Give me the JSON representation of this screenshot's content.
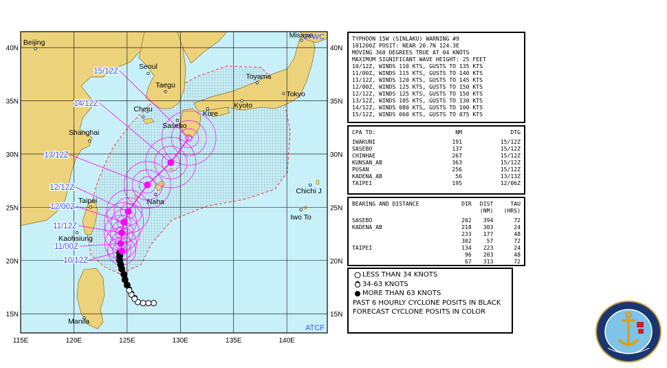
{
  "map": {
    "lon_labels": [
      "115E",
      "120E",
      "125E",
      "130E",
      "135E",
      "140E"
    ],
    "lat_labels": [
      "40N",
      "35N",
      "30N",
      "25N",
      "20N",
      "15N"
    ],
    "corner_labels": {
      "top_right": "JTWC",
      "bottom_right": "ATCF"
    },
    "colors": {
      "water": "#c8f0f8",
      "land": "#ecd27a",
      "grid": "#000000",
      "track_past": "#000000",
      "track_forecast": "#ff00ff",
      "label_blue": "#3355ff",
      "danger_area": "#ff3333",
      "hatch": "#7fa0a8"
    },
    "places": [
      {
        "name": "Beijing",
        "lon": 116.4,
        "lat": 39.9
      },
      {
        "name": "Seoul",
        "lon": 126.98,
        "lat": 37.57
      },
      {
        "name": "Taegu",
        "lon": 128.6,
        "lat": 35.87
      },
      {
        "name": "Cheju",
        "lon": 126.5,
        "lat": 33.5
      },
      {
        "name": "Sasebo",
        "lon": 129.72,
        "lat": 33.16
      },
      {
        "name": "Kure",
        "lon": 132.56,
        "lat": 34.24
      },
      {
        "name": "Kyoto",
        "lon": 135.77,
        "lat": 35.01
      },
      {
        "name": "Toyama",
        "lon": 137.21,
        "lat": 36.7
      },
      {
        "name": "Tokyo",
        "lon": 139.69,
        "lat": 35.69
      },
      {
        "name": "Misawa",
        "lon": 141.37,
        "lat": 40.68
      },
      {
        "name": "Shanghai",
        "lon": 121.47,
        "lat": 31.23
      },
      {
        "name": "Taipei",
        "lon": 121.56,
        "lat": 25.03
      },
      {
        "name": "Kaohsiung",
        "lon": 120.3,
        "lat": 22.62
      },
      {
        "name": "Naha",
        "lon": 127.68,
        "lat": 26.21
      },
      {
        "name": "Chichi J",
        "lon": 142.19,
        "lat": 27.09
      },
      {
        "name": "Iwo To",
        "lon": 141.32,
        "lat": 24.78
      },
      {
        "name": "Manila",
        "lon": 120.98,
        "lat": 14.6
      }
    ],
    "forecast_positions": [
      {
        "label": "10/12Z",
        "lon": 124.5,
        "lat": 20.9,
        "wind_kt": 110
      },
      {
        "label": "11/00Z",
        "lon": 124.4,
        "lat": 21.6,
        "wind_kt": 115
      },
      {
        "label": "11/12Z",
        "lon": 124.5,
        "lat": 22.6,
        "wind_kt": 120
      },
      {
        "label": "12/00Z",
        "lon": 124.7,
        "lat": 23.6,
        "wind_kt": 125
      },
      {
        "label": "12/12Z",
        "lon": 125.1,
        "lat": 24.6,
        "wind_kt": 125
      },
      {
        "label": "13/12Z",
        "lon": 126.9,
        "lat": 27.1,
        "wind_kt": 105
      },
      {
        "label": "14/12Z",
        "lon": 129.1,
        "lat": 29.2,
        "wind_kt": 80
      },
      {
        "label": "15/12Z",
        "lon": 130.8,
        "lat": 31.5,
        "wind_kt": 60
      }
    ],
    "current_position": {
      "lon": 124.3,
      "lat": 20.7
    },
    "past_positions": [
      {
        "lon": 127.5,
        "lat": 16.0,
        "class": "lt34"
      },
      {
        "lon": 127.0,
        "lat": 16.0,
        "class": "lt34"
      },
      {
        "lon": 126.5,
        "lat": 16.0,
        "class": "lt34"
      },
      {
        "lon": 126.0,
        "lat": 16.1,
        "class": "lt34"
      },
      {
        "lon": 125.7,
        "lat": 16.4,
        "class": "34to63"
      },
      {
        "lon": 125.4,
        "lat": 16.8,
        "class": "34to63"
      },
      {
        "lon": 125.2,
        "lat": 17.2,
        "class": "34to63"
      },
      {
        "lon": 125.0,
        "lat": 17.7,
        "class": "gt63"
      },
      {
        "lon": 124.8,
        "lat": 18.2,
        "class": "gt63"
      },
      {
        "lon": 124.7,
        "lat": 18.7,
        "class": "gt63"
      },
      {
        "lon": 124.5,
        "lat": 19.2,
        "class": "gt63"
      },
      {
        "lon": 124.4,
        "lat": 19.6,
        "class": "gt63"
      },
      {
        "lon": 124.3,
        "lat": 20.0,
        "class": "gt63"
      },
      {
        "lon": 124.3,
        "lat": 20.4,
        "class": "gt63"
      }
    ]
  },
  "warning": {
    "lines": [
      "TYPHOON 15W (SINLAKU) WARNING #9",
      "101200Z POSIT: NEAR 20.7N 124.3E",
      "MOVING 360 DEGREES TRUE AT 04 KNOTS",
      "MAXIMUM SIGNIFICANT WAVE HEIGHT: 25 FEET",
      "10/12Z, WINDS 110 KTS, GUSTS TO 135 KTS",
      "11/00Z, WINDS 115 KTS, GUSTS TO 140 KTS",
      "11/12Z, WINDS 120 KTS, GUSTS TO 145 KTS",
      "12/00Z, WINDS 125 KTS, GUSTS TO 150 KTS",
      "12/12Z, WINDS 125 KTS, GUSTS TO 150 KTS",
      "13/12Z, WINDS 105 KTS, GUSTS TO 130 KTS",
      "14/12Z, WINDS 080 KTS, GUSTS TO 100 KTS",
      "15/12Z, WINDS 060 KTS, GUSTS TO 075 KTS"
    ]
  },
  "cpa": {
    "headers": [
      "CPA TO:",
      "NM",
      "DTG"
    ],
    "rows": [
      [
        "IWAKUNI",
        "191",
        "15/12Z"
      ],
      [
        "SASEBO",
        "137",
        "15/12Z"
      ],
      [
        "CHINHAE",
        "267",
        "15/12Z"
      ],
      [
        "KUNSAN_AB",
        "363",
        "15/12Z"
      ],
      [
        "PUSAN",
        "256",
        "15/12Z"
      ],
      [
        "KADENA_AB",
        "56",
        "13/13Z"
      ],
      [
        "TAIPEI",
        "195",
        "12/06Z"
      ]
    ]
  },
  "bearing": {
    "headers": [
      "BEARING AND DISTANCE",
      "DIR",
      "DIST",
      "TAU"
    ],
    "subheaders": [
      "",
      "",
      "(NM)",
      "(HRS)"
    ],
    "rows": [
      [
        "SASEBO",
        "202",
        "394",
        "72"
      ],
      [
        "KADENA_AB",
        "218",
        "303",
        "24"
      ],
      [
        "",
        "233",
        "177",
        "48"
      ],
      [
        "",
        "302",
        "57",
        "72"
      ],
      [
        "TAIPEI",
        "134",
        "223",
        "24"
      ],
      [
        "",
        "96",
        "203",
        "48"
      ],
      [
        "",
        "67",
        "313",
        "72"
      ]
    ]
  },
  "legend": {
    "items": [
      {
        "symbol": "lt34",
        "label": "LESS THAN 34 KNOTS"
      },
      {
        "symbol": "34to63",
        "label": "34-63 KNOTS"
      },
      {
        "symbol": "gt63",
        "label": "MORE THAN 63 KNOTS"
      }
    ],
    "notes": [
      "PAST 6 HOURLY CYCLONE POSITS IN BLACK",
      "FORECAST CYCLONE POSITS IN COLOR"
    ]
  }
}
